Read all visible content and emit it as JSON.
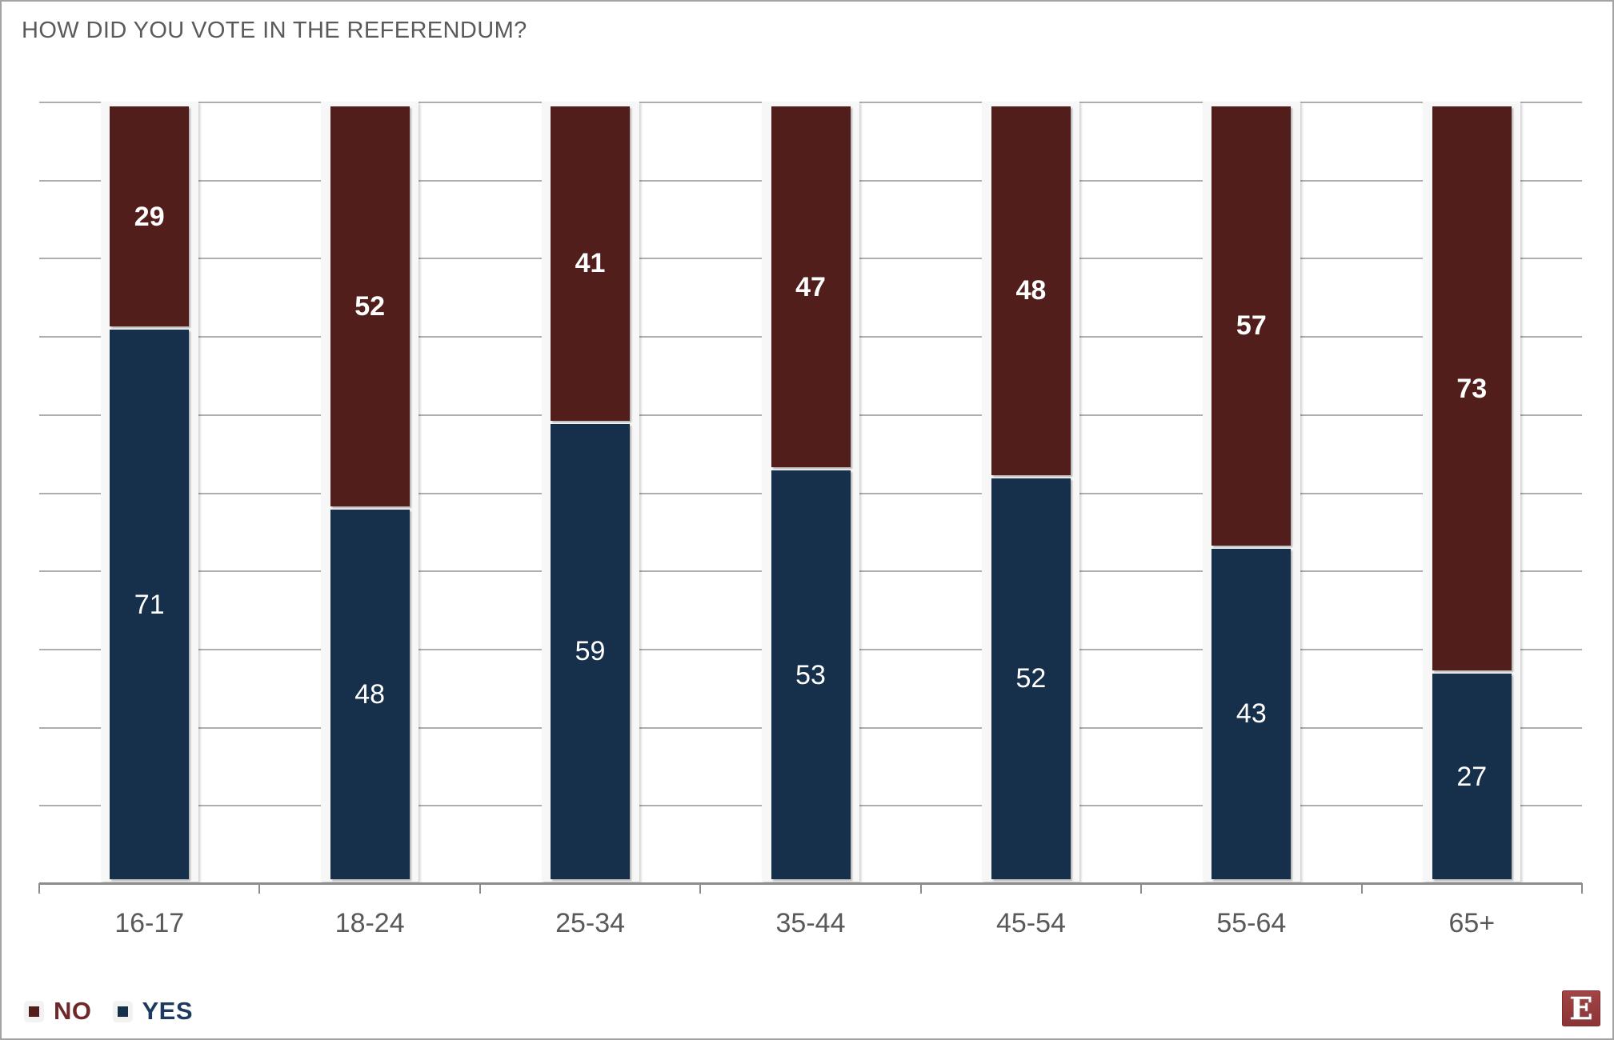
{
  "title": "HOW DID YOU VOTE IN THE REFERENDUM?",
  "chart_data": {
    "type": "bar",
    "stacked": true,
    "stacked_total": 100,
    "title": "HOW DID YOU VOTE IN THE REFERENDUM?",
    "xlabel": "",
    "ylabel": "",
    "ylim": [
      0,
      100
    ],
    "grid": "on",
    "grid_step": 10,
    "y_axis_labels_visible": false,
    "legend_position": "bottom-left",
    "categories": [
      "16-17",
      "18-24",
      "25-34",
      "35-44",
      "45-54",
      "55-64",
      "65+"
    ],
    "series": [
      {
        "name": "NO",
        "color": "#521E1C",
        "label_weight": "bold",
        "values": [
          29,
          52,
          41,
          47,
          48,
          57,
          73
        ]
      },
      {
        "name": "YES",
        "color": "#16304B",
        "label_weight": "normal",
        "values": [
          71,
          48,
          59,
          53,
          52,
          43,
          27
        ]
      }
    ]
  },
  "legend": {
    "items": [
      {
        "label": "NO",
        "swatch_color": "#521E1C",
        "text_color": "#6F2829"
      },
      {
        "label": "YES",
        "swatch_color": "#16304B",
        "text_color": "#1D3A5F"
      }
    ]
  },
  "colors": {
    "title_text": "#5A5A5A",
    "axis_label_text": "#595959",
    "gridline": "#AEAEAE",
    "axis_line": "#8C8C8C",
    "column_band": "#F7F7F7",
    "value_label_text": "#FFFFFF",
    "frame_border": "#A3A3A3",
    "logo_background": "#9A3B3C"
  },
  "logo": {
    "letter": "E"
  }
}
